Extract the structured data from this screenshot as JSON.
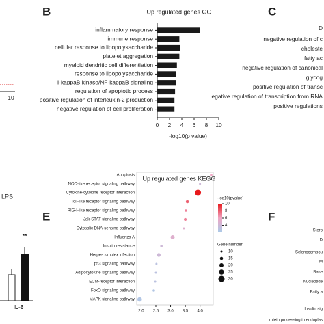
{
  "chart_data": [
    {
      "type": "bar",
      "orientation": "horizontal",
      "panel": "B",
      "title": "Up regulated genes GO",
      "x_label": "-log10(p value)",
      "categories": [
        "inflammatory response",
        "immune response",
        "cellular response to lipopolysaccharide",
        "platelet aggregation",
        "myeloid dendritic cell differentiation",
        "response to lipopolysaccharide",
        "I-kappaB kinase/NF-kappaB signaling",
        "regulation of apoptotic process",
        "positive regulation of interleukin-2 production",
        "negative regulation of cell proliferation"
      ],
      "values": [
        6.9,
        3.6,
        3.7,
        3.6,
        3.2,
        3.1,
        3.0,
        2.9,
        2.8,
        2.8
      ],
      "color": "#1a1a1a",
      "xlim": [
        0,
        10
      ],
      "xticks": [
        0,
        2,
        4,
        6,
        8,
        10
      ]
    },
    {
      "type": "scatter",
      "panel": "E",
      "title": "Up regulated genes KEGG",
      "categories": [
        "Apoptosis",
        "NOD-like receptor signaling pathway",
        "Cytokine-cytokine receptor interaction",
        "Toll-like receptor signaling pathway",
        "RIG-I-like receptor signaling pathway",
        "Jak-STAT signaling pathway",
        "Cytosolic DNA-sensing pathway",
        "Influenza A",
        "Insulin resistance",
        "Herpes simplex infection",
        "p53 signaling pathway",
        "Adipocytokine signaling pathway",
        "ECM-receptor interaction",
        "FoxO signaling pathway",
        "MAPK signaling pathway"
      ],
      "x": [
        4.38,
        4.0,
        3.93,
        3.57,
        3.52,
        3.5,
        3.45,
        3.07,
        2.69,
        2.6,
        2.52,
        2.5,
        2.48,
        2.43,
        1.95
      ],
      "color_values": [
        6,
        4,
        10,
        8,
        7,
        7,
        5,
        5,
        4,
        4,
        3,
        3,
        3,
        2.5,
        2.5
      ],
      "sizes": [
        12,
        10,
        30,
        15,
        12,
        14,
        10,
        20,
        12,
        18,
        10,
        10,
        10,
        12,
        22
      ],
      "colormap": [
        "#a9cbe9",
        "#f0a6c4",
        "#e8191c"
      ],
      "clim": [
        2,
        10
      ],
      "colorbar_title": "-log10(pvalue)",
      "colorbar_ticks": [
        4,
        6,
        8,
        10
      ],
      "size_title": "Gene number",
      "size_ticks": [
        10,
        15,
        20,
        25,
        30
      ],
      "xlim": [
        1.85,
        4.45
      ],
      "xticks": [
        {
          "value": 2,
          "label": "2.0"
        },
        2.5,
        {
          "value": 3,
          "label": "3.0"
        },
        3.5,
        {
          "value": 4,
          "label": "4.0"
        }
      ]
    }
  ],
  "fragments": {
    "panel_a": {
      "tick": "10"
    },
    "panel_c": {
      "letter": "C",
      "labels": [
        "D",
        "negative regulation of c",
        "choleste",
        "fatty ac",
        "negative regulation of canonical",
        "glycog",
        "positive regulation of transc",
        "egative regulation of transcription from RNA",
        "positive regulations"
      ]
    },
    "panel_d": {
      "title": "LPS",
      "significance": "**",
      "category": "IL-6"
    },
    "panel_f": {
      "letter": "F",
      "labels": [
        "Stero",
        "D",
        "Selenocompou",
        "M",
        "Base",
        "Nucleotide",
        "Fatty a",
        "Insulin sig",
        "rotein processing in endoplas"
      ]
    }
  }
}
